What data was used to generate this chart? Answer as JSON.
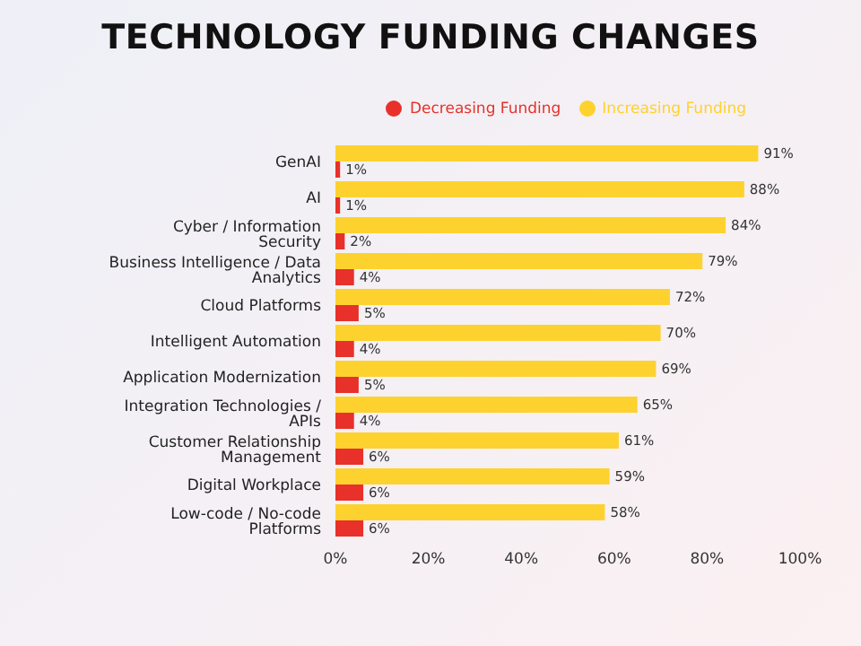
{
  "chart_data": {
    "type": "bar",
    "title": "TECHNOLOGY FUNDING CHANGES",
    "orientation": "horizontal",
    "categories": [
      "GenAI",
      "AI",
      "Cyber / Information Security",
      "Business Intelligence / Data Analytics",
      "Cloud Platforms",
      "Intelligent Automation",
      "Application Modernization",
      "Integration Technologies / APIs",
      "Customer Relationship Management",
      "Digital Workplace",
      "Low-code / No-code Platforms"
    ],
    "series": [
      {
        "name": "Increasing Funding",
        "color": "#fdd22e",
        "values": [
          91,
          88,
          84,
          79,
          72,
          70,
          69,
          65,
          61,
          59,
          58
        ],
        "value_labels": [
          "91%",
          "88%",
          "84%",
          "79%",
          "72%",
          "70%",
          "69%",
          "65%",
          "61%",
          "59%",
          "58%"
        ]
      },
      {
        "name": "Decreasing Funding",
        "color": "#e8312a",
        "values": [
          1,
          1,
          2,
          4,
          5,
          4,
          5,
          4,
          6,
          6,
          6
        ],
        "value_labels": [
          "1%",
          "1%",
          "2%",
          "4%",
          "5%",
          "4%",
          "5%",
          "4%",
          "6%",
          "6%",
          "6%"
        ]
      }
    ],
    "xlim": [
      0,
      100
    ],
    "xticks": [
      {
        "value": 0,
        "label": "0%"
      },
      {
        "value": 20,
        "label": "20%"
      },
      {
        "value": 40,
        "label": "40%"
      },
      {
        "value": 60,
        "label": "60%"
      },
      {
        "value": 80,
        "label": "80%"
      },
      {
        "value": 100,
        "label": "100%"
      }
    ],
    "grid": false,
    "legend": "top right"
  }
}
